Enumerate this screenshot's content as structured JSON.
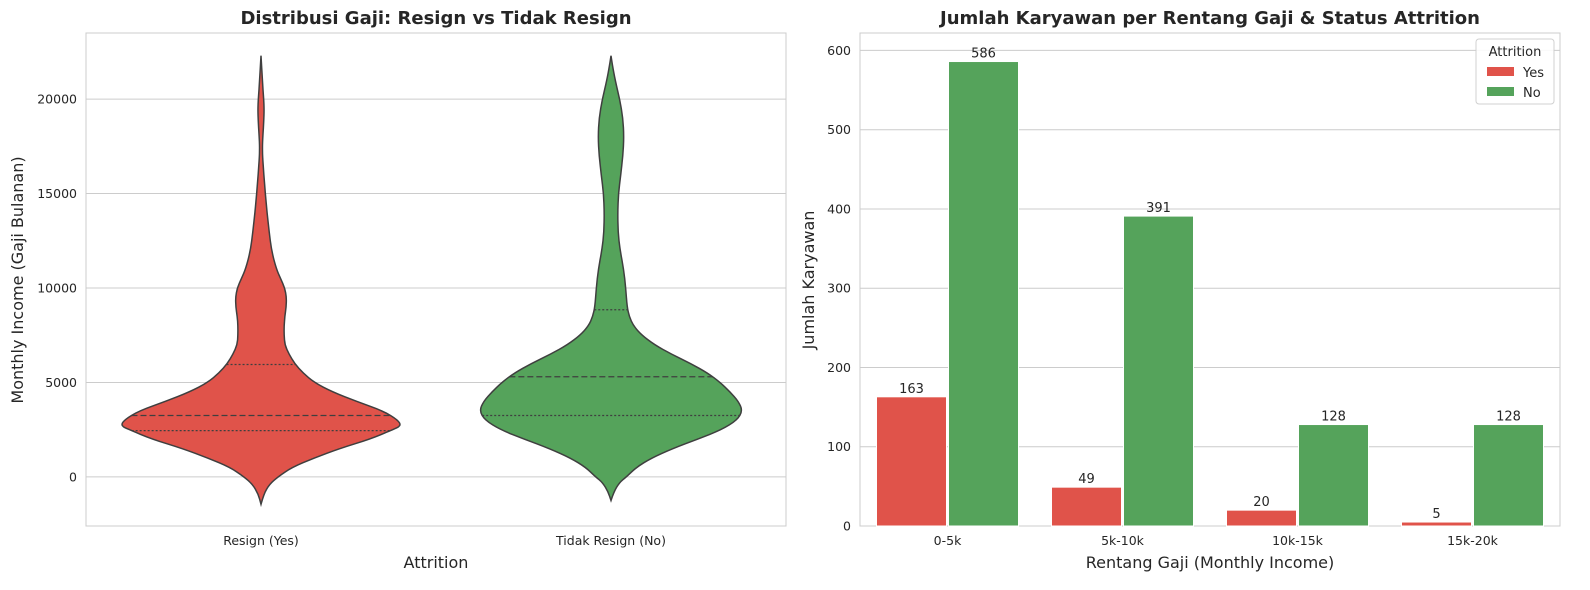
{
  "colors": {
    "yes": "#E0534A",
    "no": "#55A35B",
    "grid": "#cccccc",
    "text": "#262626"
  },
  "chart_data": [
    {
      "type": "violin",
      "title": "Distribusi Gaji: Resign vs Tidak Resign",
      "xlabel": "Attrition",
      "ylabel": "Monthly Income (Gaji Bulanan)",
      "ylim": [
        -2600,
        23500
      ],
      "yticks": [
        0,
        5000,
        10000,
        15000,
        20000
      ],
      "categories": [
        "Resign (Yes)",
        "Tidak Resign (No)"
      ],
      "grid": true,
      "violins": [
        {
          "category": "Resign (Yes)",
          "color_key": "yes",
          "q1": 2450,
          "median": 3250,
          "q3": 5950,
          "density_profile": [
            [
              -1450,
              0.0
            ],
            [
              -900,
              0.02
            ],
            [
              -400,
              0.06
            ],
            [
              0,
              0.12
            ],
            [
              500,
              0.22
            ],
            [
              1000,
              0.38
            ],
            [
              1500,
              0.56
            ],
            [
              2000,
              0.78
            ],
            [
              2500,
              0.94
            ],
            [
              2700,
              1.0
            ],
            [
              3000,
              0.98
            ],
            [
              3500,
              0.87
            ],
            [
              4000,
              0.68
            ],
            [
              4500,
              0.51
            ],
            [
              5000,
              0.38
            ],
            [
              5500,
              0.3
            ],
            [
              6000,
              0.24
            ],
            [
              6500,
              0.2
            ],
            [
              7000,
              0.17
            ],
            [
              7500,
              0.165
            ],
            [
              8000,
              0.165
            ],
            [
              8500,
              0.17
            ],
            [
              9000,
              0.18
            ],
            [
              9500,
              0.182
            ],
            [
              10000,
              0.17
            ],
            [
              10500,
              0.14
            ],
            [
              11000,
              0.11
            ],
            [
              12000,
              0.075
            ],
            [
              13000,
              0.058
            ],
            [
              14000,
              0.043
            ],
            [
              15000,
              0.031
            ],
            [
              16000,
              0.02
            ],
            [
              17000,
              0.011
            ],
            [
              17500,
              0.01
            ],
            [
              18000,
              0.013
            ],
            [
              19000,
              0.021
            ],
            [
              19500,
              0.022
            ],
            [
              20000,
              0.019
            ],
            [
              21000,
              0.01
            ],
            [
              22300,
              0.0
            ]
          ]
        },
        {
          "category": "Tidak Resign (No)",
          "color_key": "no",
          "q1": 3250,
          "median": 5300,
          "q3": 8850,
          "density_profile": [
            [
              -1250,
              0.0
            ],
            [
              -800,
              0.02
            ],
            [
              -300,
              0.06
            ],
            [
              0,
              0.11
            ],
            [
              500,
              0.18
            ],
            [
              1000,
              0.29
            ],
            [
              1500,
              0.44
            ],
            [
              2000,
              0.62
            ],
            [
              2500,
              0.79
            ],
            [
              3000,
              0.9
            ],
            [
              3500,
              0.94
            ],
            [
              4000,
              0.91
            ],
            [
              4500,
              0.85
            ],
            [
              5000,
              0.78
            ],
            [
              5500,
              0.69
            ],
            [
              6000,
              0.57
            ],
            [
              6500,
              0.43
            ],
            [
              7000,
              0.31
            ],
            [
              7500,
              0.22
            ],
            [
              8000,
              0.16
            ],
            [
              8500,
              0.13
            ],
            [
              9000,
              0.115
            ],
            [
              10000,
              0.105
            ],
            [
              11000,
              0.09
            ],
            [
              12000,
              0.065
            ],
            [
              13000,
              0.05
            ],
            [
              14000,
              0.048
            ],
            [
              15000,
              0.053
            ],
            [
              16000,
              0.07
            ],
            [
              17000,
              0.085
            ],
            [
              18000,
              0.092
            ],
            [
              19000,
              0.085
            ],
            [
              20000,
              0.062
            ],
            [
              21000,
              0.03
            ],
            [
              21800,
              0.01
            ],
            [
              22300,
              0.0
            ]
          ]
        }
      ]
    },
    {
      "type": "bar",
      "title": "Jumlah Karyawan per Rentang Gaji & Status Attrition",
      "xlabel": "Rentang Gaji (Monthly Income)",
      "ylabel": "Jumlah Karyawan",
      "ylim": [
        0,
        622
      ],
      "yticks": [
        0,
        100,
        200,
        300,
        400,
        500,
        600
      ],
      "categories": [
        "0-5k",
        "5k-10k",
        "10k-15k",
        "15k-20k"
      ],
      "grid": true,
      "legend": {
        "title": "Attrition",
        "placement": "top-right"
      },
      "series": [
        {
          "name": "Yes",
          "color_key": "yes",
          "values": [
            163,
            49,
            20,
            5
          ]
        },
        {
          "name": "No",
          "color_key": "no",
          "values": [
            586,
            391,
            128,
            128
          ]
        }
      ]
    }
  ]
}
